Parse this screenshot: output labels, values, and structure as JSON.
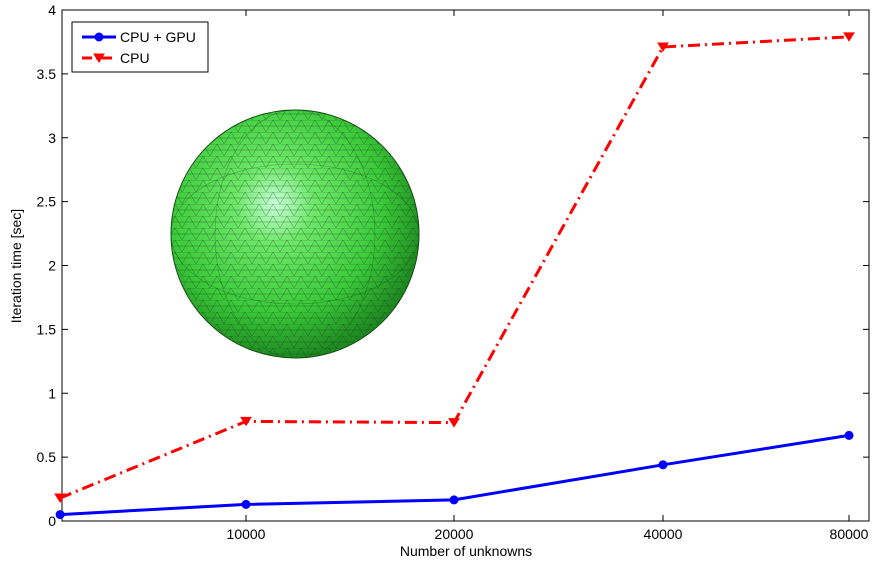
{
  "chart_data": {
    "type": "line",
    "x": [
      2000,
      10400,
      19800,
      41000,
      80000
    ],
    "xtick_labels": [
      "10000",
      "20000",
      "40000",
      "80000"
    ],
    "xticks": [
      10400,
      19800,
      41000,
      80000
    ],
    "xlabel": "Number of unknowns",
    "ylabel": "Iteration time [sec]",
    "ylim": [
      0,
      4
    ],
    "yticks": [
      0,
      0.5,
      1,
      1.5,
      2,
      2.5,
      3,
      3.5,
      4
    ],
    "ytick_labels": [
      "0",
      "0.5",
      "1",
      "1.5",
      "2",
      "2.5",
      "3",
      "3.5",
      "4"
    ],
    "grid": false,
    "legend_position": "top-left",
    "series": [
      {
        "name": "CPU + GPU",
        "values": [
          0.05,
          0.13,
          0.165,
          0.44,
          0.67
        ],
        "color": "#0000ff",
        "marker": "circle",
        "line_style": "solid"
      },
      {
        "name": "CPU",
        "values": [
          0.18,
          0.78,
          0.77,
          3.71,
          3.79
        ],
        "color": "#ff0000",
        "marker": "triangle-down",
        "line_style": "dash-dot"
      }
    ],
    "inset_image": "green triangulated sphere mesh"
  }
}
